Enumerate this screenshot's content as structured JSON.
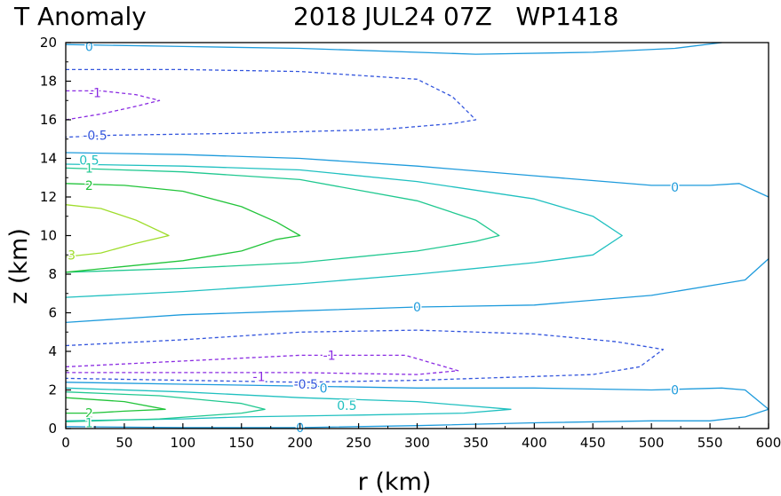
{
  "chart_data": {
    "type": "contour",
    "title_left": "T Anomaly",
    "title_right": "2018 JUL24 07Z   WP1418",
    "xlabel": "r (km)",
    "ylabel": "z (km)",
    "xlim": [
      0,
      600
    ],
    "ylim": [
      0,
      20
    ],
    "x_ticks": [
      "0",
      "50",
      "100",
      "150",
      "200",
      "250",
      "300",
      "350",
      "400",
      "450",
      "500",
      "550",
      "600"
    ],
    "y_ticks": [
      "0",
      "2",
      "4",
      "6",
      "8",
      "10",
      "12",
      "14",
      "16",
      "18",
      "20"
    ],
    "grid": false,
    "legend": "none",
    "contour_levels": [
      {
        "level": -1,
        "color": "#8a2be2",
        "style": "dashed"
      },
      {
        "level": -0.5,
        "color": "#3355dd",
        "style": "dashed"
      },
      {
        "level": 0,
        "color": "#1e9bdc",
        "style": "solid"
      },
      {
        "level": 0.5,
        "color": "#20c0c0",
        "style": "solid"
      },
      {
        "level": 1,
        "color": "#20c890",
        "style": "solid"
      },
      {
        "level": 2,
        "color": "#22c43a",
        "style": "solid"
      },
      {
        "level": 3,
        "color": "#9fdd2c",
        "style": "solid"
      }
    ],
    "series": [
      {
        "level": 0,
        "points": [
          [
            0,
            19.9
          ],
          [
            100,
            19.8
          ],
          [
            200,
            19.7
          ],
          [
            350,
            19.4
          ],
          [
            450,
            19.5
          ],
          [
            520,
            19.7
          ],
          [
            560,
            20
          ]
        ]
      },
      {
        "level": -0.5,
        "points": [
          [
            0,
            18.6
          ],
          [
            100,
            18.6
          ],
          [
            200,
            18.5
          ],
          [
            300,
            18.1
          ],
          [
            330,
            17.2
          ],
          [
            350,
            16
          ],
          [
            330,
            15.8
          ],
          [
            270,
            15.5
          ],
          [
            150,
            15.3
          ],
          [
            40,
            15.2
          ],
          [
            0,
            15.1
          ]
        ]
      },
      {
        "level": -1,
        "points": [
          [
            0,
            16
          ],
          [
            30,
            16.3
          ],
          [
            60,
            16.7
          ],
          [
            80,
            17
          ],
          [
            60,
            17.3
          ],
          [
            30,
            17.5
          ],
          [
            0,
            17.5
          ]
        ]
      },
      {
        "level": 0,
        "points": [
          [
            0,
            14.3
          ],
          [
            100,
            14.2
          ],
          [
            200,
            14
          ],
          [
            300,
            13.6
          ],
          [
            400,
            13.1
          ],
          [
            500,
            12.6
          ],
          [
            550,
            12.6
          ],
          [
            575,
            12.7
          ],
          [
            600,
            12
          ]
        ]
      },
      {
        "level": 0.5,
        "points": [
          [
            0,
            13.7
          ],
          [
            100,
            13.6
          ],
          [
            200,
            13.4
          ],
          [
            300,
            12.8
          ],
          [
            400,
            11.9
          ],
          [
            450,
            11
          ],
          [
            475,
            10
          ],
          [
            450,
            9
          ],
          [
            400,
            8.6
          ],
          [
            300,
            8
          ],
          [
            200,
            7.5
          ],
          [
            100,
            7.1
          ],
          [
            0,
            6.8
          ]
        ]
      },
      {
        "level": 1,
        "points": [
          [
            0,
            13.5
          ],
          [
            100,
            13.3
          ],
          [
            200,
            12.9
          ],
          [
            300,
            11.8
          ],
          [
            350,
            10.8
          ],
          [
            370,
            10
          ],
          [
            350,
            9.7
          ],
          [
            300,
            9.2
          ],
          [
            200,
            8.6
          ],
          [
            100,
            8.3
          ],
          [
            0,
            8.1
          ]
        ]
      },
      {
        "level": 2,
        "points": [
          [
            0,
            12.7
          ],
          [
            50,
            12.6
          ],
          [
            100,
            12.3
          ],
          [
            150,
            11.5
          ],
          [
            180,
            10.7
          ],
          [
            200,
            10
          ],
          [
            180,
            9.8
          ],
          [
            150,
            9.2
          ],
          [
            100,
            8.7
          ],
          [
            50,
            8.4
          ],
          [
            0,
            8.1
          ]
        ]
      },
      {
        "level": 3,
        "points": [
          [
            0,
            11.6
          ],
          [
            30,
            11.4
          ],
          [
            60,
            10.8
          ],
          [
            88,
            10
          ],
          [
            60,
            9.6
          ],
          [
            30,
            9.1
          ],
          [
            0,
            8.9
          ]
        ]
      },
      {
        "level": 0,
        "points": [
          [
            0,
            5.5
          ],
          [
            100,
            5.9
          ],
          [
            200,
            6.1
          ],
          [
            300,
            6.3
          ],
          [
            400,
            6.4
          ],
          [
            500,
            6.9
          ],
          [
            560,
            7.5
          ],
          [
            580,
            7.7
          ],
          [
            600,
            8.8
          ]
        ]
      },
      {
        "level": -0.5,
        "points": [
          [
            0,
            4.3
          ],
          [
            100,
            4.6
          ],
          [
            200,
            5
          ],
          [
            300,
            5.1
          ],
          [
            400,
            4.9
          ],
          [
            470,
            4.5
          ],
          [
            510,
            4.1
          ],
          [
            490,
            3.2
          ],
          [
            450,
            2.8
          ],
          [
            400,
            2.7
          ],
          [
            300,
            2.5
          ],
          [
            200,
            2.4
          ],
          [
            100,
            2.5
          ],
          [
            0,
            2.6
          ]
        ]
      },
      {
        "level": -1,
        "points": [
          [
            0,
            3.2
          ],
          [
            100,
            3.5
          ],
          [
            200,
            3.8
          ],
          [
            290,
            3.8
          ],
          [
            335,
            3
          ],
          [
            300,
            2.8
          ],
          [
            200,
            2.9
          ],
          [
            100,
            2.9
          ],
          [
            0,
            2.9
          ]
        ]
      },
      {
        "level": 0,
        "points": [
          [
            0,
            2.4
          ],
          [
            100,
            2.3
          ],
          [
            200,
            2.2
          ],
          [
            300,
            2.1
          ],
          [
            400,
            2.1
          ],
          [
            500,
            2
          ],
          [
            560,
            2.1
          ],
          [
            580,
            2
          ],
          [
            600,
            1
          ]
        ]
      },
      {
        "level": 0,
        "points": [
          [
            600,
            1
          ],
          [
            580,
            0.6
          ],
          [
            550,
            0.4
          ],
          [
            500,
            0.4
          ],
          [
            400,
            0.3
          ],
          [
            300,
            0.15
          ],
          [
            200,
            0.05
          ],
          [
            100,
            0.05
          ],
          [
            0,
            0.1
          ]
        ]
      },
      {
        "level": 0.5,
        "points": [
          [
            0,
            2.1
          ],
          [
            100,
            1.9
          ],
          [
            200,
            1.6
          ],
          [
            300,
            1.4
          ],
          [
            380,
            1
          ],
          [
            340,
            0.8
          ],
          [
            250,
            0.7
          ],
          [
            150,
            0.6
          ],
          [
            100,
            0.5
          ],
          [
            0,
            0.4
          ]
        ]
      },
      {
        "level": 1,
        "points": [
          [
            0,
            1.9
          ],
          [
            80,
            1.7
          ],
          [
            150,
            1.3
          ],
          [
            170,
            1
          ],
          [
            150,
            0.8
          ],
          [
            80,
            0.5
          ],
          [
            0,
            0.35
          ]
        ]
      },
      {
        "level": 2,
        "points": [
          [
            0,
            1.6
          ],
          [
            50,
            1.4
          ],
          [
            85,
            1
          ],
          [
            50,
            0.9
          ],
          [
            20,
            0.8
          ],
          [
            0,
            0.8
          ]
        ]
      }
    ],
    "labels": [
      {
        "text": "0",
        "x": 20,
        "y": 19.8,
        "level": 0
      },
      {
        "text": "-1",
        "x": 25,
        "y": 17.4,
        "level": -1
      },
      {
        "text": "-0.5",
        "x": 25,
        "y": 15.2,
        "level": -0.5
      },
      {
        "text": "0.5",
        "x": 20,
        "y": 13.9,
        "level": 0.5
      },
      {
        "text": "1",
        "x": 20,
        "y": 13.5,
        "level": 1
      },
      {
        "text": "2",
        "x": 20,
        "y": 12.6,
        "level": 2
      },
      {
        "text": "0",
        "x": 520,
        "y": 12.5,
        "level": 0
      },
      {
        "text": "3",
        "x": 5,
        "y": 9,
        "level": 3
      },
      {
        "text": "0",
        "x": 300,
        "y": 6.3,
        "level": 0
      },
      {
        "text": "-1",
        "x": 225,
        "y": 3.8,
        "level": -1
      },
      {
        "text": "-1",
        "x": 165,
        "y": 2.7,
        "level": -1
      },
      {
        "text": "-0.5",
        "x": 205,
        "y": 2.3,
        "level": -0.5
      },
      {
        "text": "0",
        "x": 220,
        "y": 2.1,
        "level": 0
      },
      {
        "text": "0",
        "x": 520,
        "y": 2.0,
        "level": 0
      },
      {
        "text": "0.5",
        "x": 240,
        "y": 1.2,
        "level": 0.5
      },
      {
        "text": "2",
        "x": 20,
        "y": 0.8,
        "level": 2
      },
      {
        "text": "1",
        "x": 20,
        "y": 0.3,
        "level": 1
      },
      {
        "text": "0",
        "x": 200,
        "y": 0.05,
        "level": 0
      }
    ]
  }
}
